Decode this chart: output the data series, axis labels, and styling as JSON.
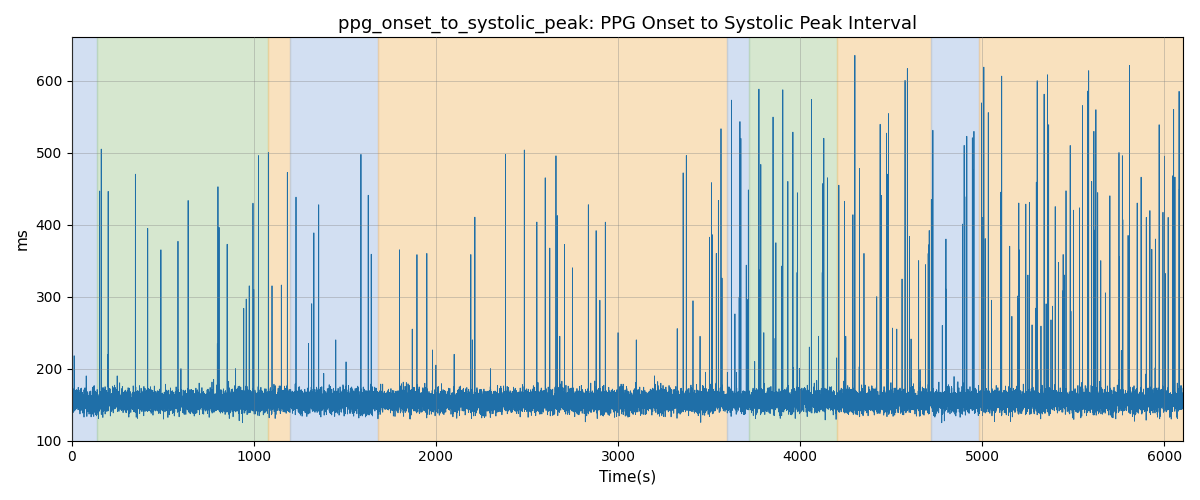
{
  "title": "ppg_onset_to_systolic_peak: PPG Onset to Systolic Peak Interval",
  "xlabel": "Time(s)",
  "ylabel": "ms",
  "xlim": [
    0,
    6100
  ],
  "ylim": [
    100,
    660
  ],
  "yticks": [
    100,
    200,
    300,
    400,
    500,
    600
  ],
  "xticks": [
    0,
    1000,
    2000,
    3000,
    4000,
    5000,
    6000
  ],
  "line_color": "#1f6fa8",
  "line_width": 0.6,
  "background_color": "#ffffff",
  "regions": [
    {
      "start": 0,
      "end": 140,
      "color": "#aec6e8",
      "alpha": 0.55
    },
    {
      "start": 140,
      "end": 1080,
      "color": "#b5d5a8",
      "alpha": 0.55
    },
    {
      "start": 1080,
      "end": 1200,
      "color": "#f5c98a",
      "alpha": 0.55
    },
    {
      "start": 1200,
      "end": 1680,
      "color": "#aec6e8",
      "alpha": 0.55
    },
    {
      "start": 1680,
      "end": 3600,
      "color": "#f5c98a",
      "alpha": 0.55
    },
    {
      "start": 3600,
      "end": 3720,
      "color": "#aec6e8",
      "alpha": 0.55
    },
    {
      "start": 3720,
      "end": 4200,
      "color": "#b5d5a8",
      "alpha": 0.55
    },
    {
      "start": 4200,
      "end": 4720,
      "color": "#f5c98a",
      "alpha": 0.55
    },
    {
      "start": 4720,
      "end": 4980,
      "color": "#aec6e8",
      "alpha": 0.55
    },
    {
      "start": 4980,
      "end": 6100,
      "color": "#f5c98a",
      "alpha": 0.55
    }
  ],
  "title_fontsize": 13,
  "label_fontsize": 11,
  "tick_fontsize": 10
}
